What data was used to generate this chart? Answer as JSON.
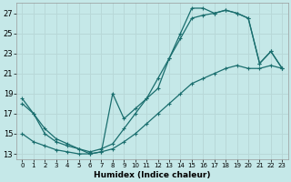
{
  "xlabel": "Humidex (Indice chaleur)",
  "background_color": "#c5e8e8",
  "grid_color": "#b8d8d8",
  "line_color": "#1a6e6e",
  "xlim": [
    -0.5,
    23.5
  ],
  "ylim": [
    12.5,
    28.0
  ],
  "xticks": [
    0,
    1,
    2,
    3,
    4,
    5,
    6,
    7,
    8,
    9,
    10,
    11,
    12,
    13,
    14,
    15,
    16,
    17,
    18,
    19,
    20,
    21,
    22,
    23
  ],
  "yticks": [
    13,
    15,
    17,
    19,
    21,
    23,
    25,
    27
  ],
  "line1_x": [
    0,
    1,
    2,
    3,
    4,
    5,
    6,
    7,
    8,
    9,
    10,
    11,
    12,
    13,
    14,
    15,
    16,
    17,
    18,
    19,
    20,
    21,
    22,
    23
  ],
  "line1_y": [
    18.5,
    17.0,
    15.0,
    14.2,
    13.8,
    13.5,
    13.0,
    13.2,
    19.0,
    16.5,
    17.5,
    18.5,
    19.5,
    22.5,
    25.0,
    27.5,
    27.5,
    27.0,
    27.3,
    27.0,
    26.5,
    22.0,
    23.2,
    21.5
  ],
  "line2_x": [
    0,
    1,
    2,
    3,
    4,
    5,
    6,
    7,
    8,
    9,
    10,
    11,
    12,
    13,
    14,
    15,
    16,
    17,
    18,
    19,
    20,
    21,
    22,
    23
  ],
  "line2_y": [
    18.0,
    17.0,
    15.5,
    14.5,
    14.0,
    13.5,
    13.2,
    13.5,
    14.0,
    15.5,
    17.0,
    18.5,
    20.5,
    22.5,
    24.5,
    26.5,
    26.8,
    27.0,
    27.3,
    27.0,
    26.5,
    22.0,
    23.2,
    21.5
  ],
  "line3_x": [
    0,
    1,
    2,
    3,
    4,
    5,
    6,
    7,
    8,
    9,
    10,
    11,
    12,
    13,
    14,
    15,
    16,
    17,
    18,
    19,
    20,
    21,
    22,
    23
  ],
  "line3_y": [
    15.0,
    14.2,
    13.8,
    13.4,
    13.2,
    13.0,
    13.0,
    13.2,
    13.5,
    14.2,
    15.0,
    16.0,
    17.0,
    18.0,
    19.0,
    20.0,
    20.5,
    21.0,
    21.5,
    21.8,
    21.5,
    21.5,
    21.8,
    21.5
  ]
}
